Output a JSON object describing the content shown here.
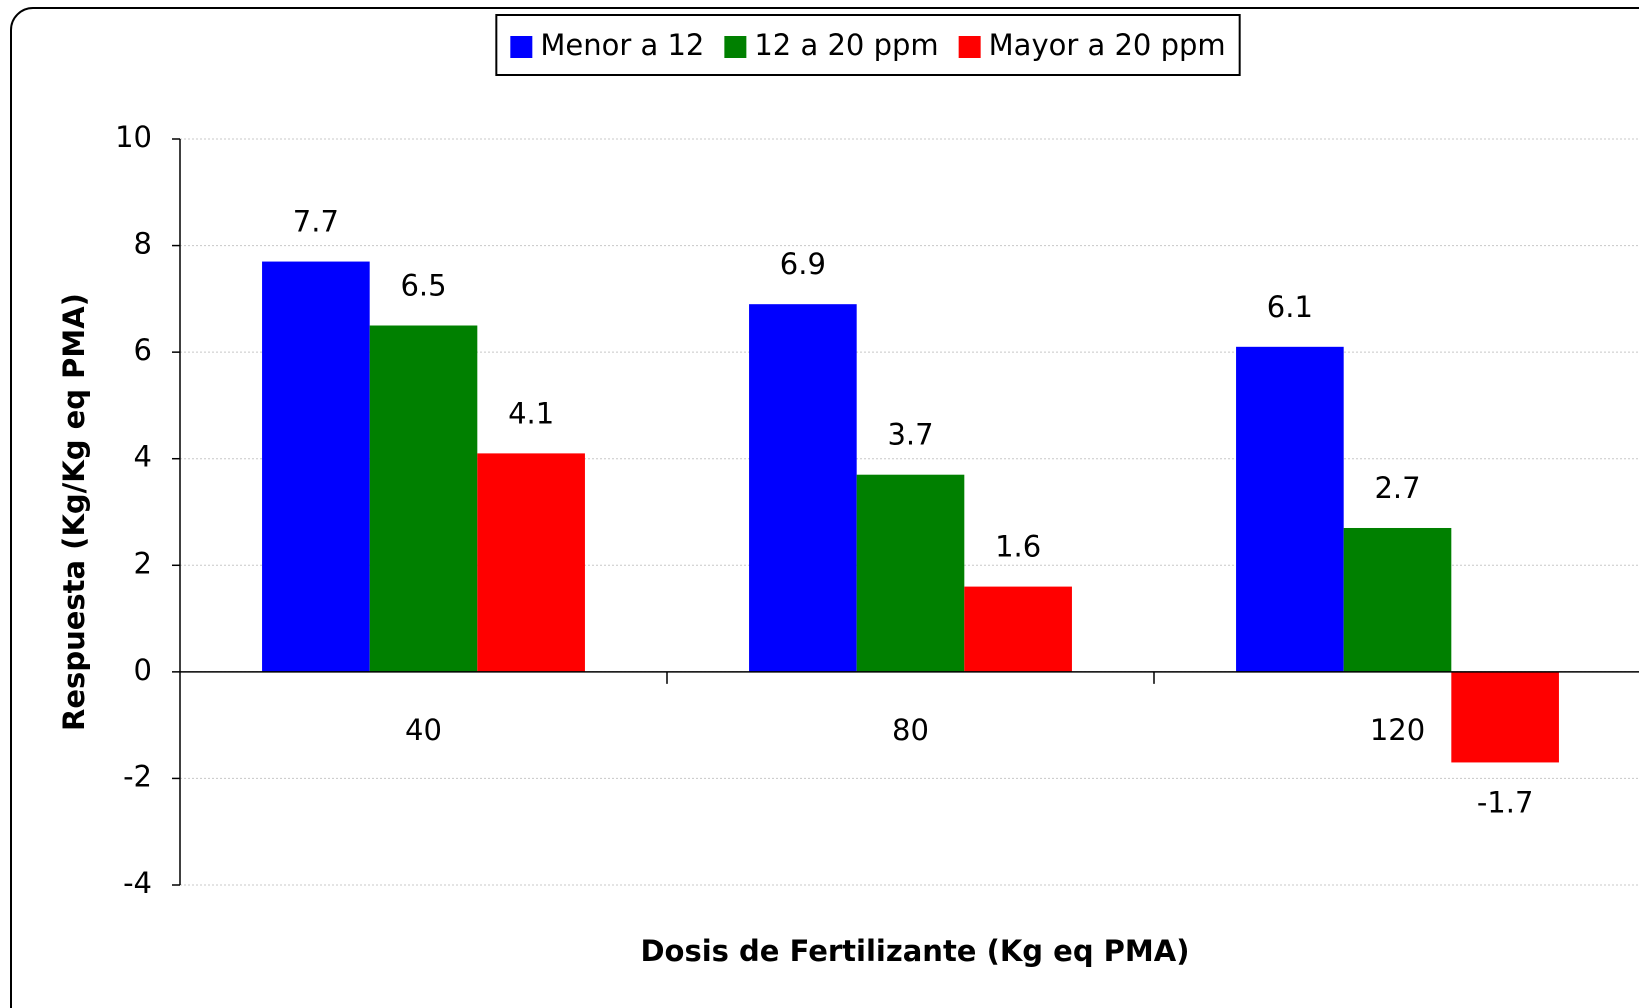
{
  "chart_data": {
    "type": "bar",
    "x_label": "Dosis de Fertilizante (Kg eq PMA)",
    "y_label": "Respuesta (Kg/Kg eq PMA)",
    "categories": [
      "40",
      "80",
      "120"
    ],
    "series": [
      {
        "name": "Menor a 12",
        "color": "#0000ff",
        "values": [
          7.7,
          6.9,
          6.1
        ]
      },
      {
        "name": "12 a 20 ppm",
        "color": "#008000",
        "values": [
          6.5,
          3.7,
          2.7
        ]
      },
      {
        "name": "Mayor a 20 ppm",
        "color": "#ff0000",
        "values": [
          4.1,
          1.6,
          -1.7
        ]
      }
    ],
    "ylim": [
      -4,
      10
    ],
    "yticks": [
      -4,
      -2,
      0,
      2,
      4,
      6,
      8,
      10
    ],
    "grid": true,
    "legend": "top"
  }
}
